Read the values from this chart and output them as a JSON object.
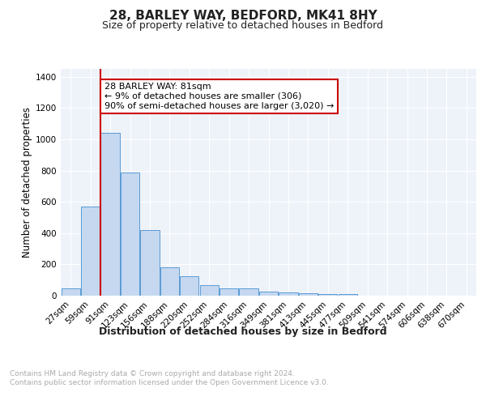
{
  "title": "28, BARLEY WAY, BEDFORD, MK41 8HY",
  "subtitle": "Size of property relative to detached houses in Bedford",
  "xlabel": "Distribution of detached houses by size in Bedford",
  "ylabel": "Number of detached properties",
  "categories": [
    "27sqm",
    "59sqm",
    "91sqm",
    "123sqm",
    "156sqm",
    "188sqm",
    "220sqm",
    "252sqm",
    "284sqm",
    "316sqm",
    "349sqm",
    "381sqm",
    "413sqm",
    "445sqm",
    "477sqm",
    "509sqm",
    "541sqm",
    "574sqm",
    "606sqm",
    "638sqm",
    "670sqm"
  ],
  "values": [
    47,
    572,
    1040,
    785,
    420,
    183,
    125,
    65,
    45,
    47,
    25,
    22,
    15,
    10,
    10,
    0,
    0,
    0,
    0,
    0,
    0
  ],
  "bar_color": "#c5d8f0",
  "bar_edge_color": "#5b9bd5",
  "highlight_line_color": "#cc0000",
  "annotation_text": "28 BARLEY WAY: 81sqm\n← 9% of detached houses are smaller (306)\n90% of semi-detached houses are larger (3,020) →",
  "annotation_box_color": "#ffffff",
  "annotation_box_edge_color": "#cc0000",
  "ylim": [
    0,
    1450
  ],
  "yticks": [
    0,
    200,
    400,
    600,
    800,
    1000,
    1200,
    1400
  ],
  "background_color": "#eef3fa",
  "grid_color": "#ffffff",
  "footnote": "Contains HM Land Registry data © Crown copyright and database right 2024.\nContains public sector information licensed under the Open Government Licence v3.0.",
  "title_fontsize": 11,
  "subtitle_fontsize": 9,
  "xlabel_fontsize": 9,
  "ylabel_fontsize": 8.5,
  "tick_fontsize": 7.5,
  "annotation_fontsize": 8
}
